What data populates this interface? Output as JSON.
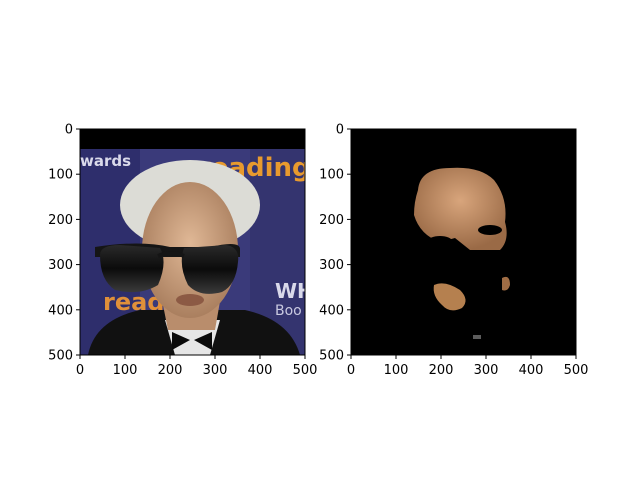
{
  "chart_data": [
    {
      "type": "image",
      "title": "",
      "xlabel": "",
      "ylabel": "",
      "xlim": [
        0,
        500
      ],
      "ylim": [
        500,
        0
      ],
      "xticks": [
        0,
        100,
        200,
        300,
        400,
        500
      ],
      "yticks": [
        0,
        100,
        200,
        300,
        400,
        500
      ],
      "image_content": "photo-with-sunglasses",
      "image_text": [
        "wards",
        "reading",
        "WH",
        "Boo",
        "readi"
      ]
    },
    {
      "type": "image",
      "title": "",
      "xlabel": "",
      "ylabel": "",
      "xlim": [
        0,
        500
      ],
      "ylim": [
        500,
        0
      ],
      "xticks": [
        0,
        100,
        200,
        300,
        400,
        500
      ],
      "yticks": [
        0,
        100,
        200,
        300,
        400,
        500
      ],
      "image_content": "segmented-face-mask"
    }
  ],
  "colors": {
    "backdrop": "#3a3a7a",
    "skin": "#c9a07c",
    "sunglasses": "#0f0f0f",
    "mask_background": "#000000"
  }
}
